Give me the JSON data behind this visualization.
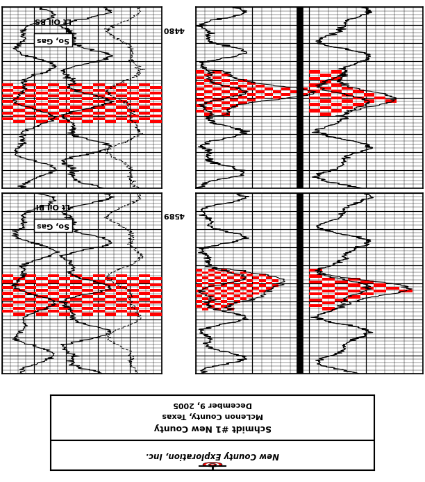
{
  "background_color": "#ffffff",
  "depth_top_label": "4480",
  "depth_bot_label": "4589",
  "label_top": [
    "So, Gas",
    "Lt Oil BS"
  ],
  "label_bot": [
    "So, Gas",
    "Lt Oil BI"
  ],
  "legend_lines": [
    "New County Exploration, Inc.",
    "Schmidt #1 New County",
    "McLenon County, Texas",
    "December 9, 2005"
  ],
  "fig_width": 6.12,
  "fig_height": 6.94
}
